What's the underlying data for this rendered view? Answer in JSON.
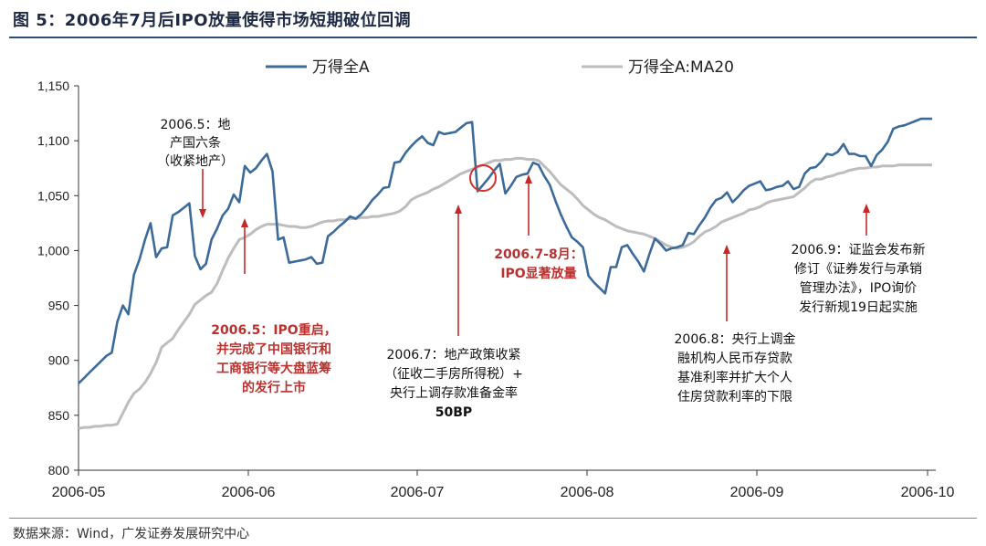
{
  "header": {
    "title": "图 5：2006年7月后IPO放量使得市场短期破位回调"
  },
  "footer": {
    "source": "数据来源：Wind，广发证券发展研究中心"
  },
  "chart_data": {
    "type": "line",
    "title": "2006年7月后IPO放量使得市场短期破位回调",
    "xlabel": "",
    "ylabel": "",
    "ylim": [
      800,
      1150
    ],
    "yticks": [
      800,
      850,
      900,
      950,
      1000,
      1050,
      1100,
      1150
    ],
    "ytick_labels": [
      "800",
      "850",
      "900",
      "950",
      "1,000",
      "1,050",
      "1,100",
      "1,150"
    ],
    "xticks": [
      "2006-05",
      "2006-06",
      "2006-07",
      "2006-08",
      "2006-09",
      "2006-10"
    ],
    "legend": "top-center",
    "series": [
      {
        "name": "万得全A",
        "color": "#3d6b99",
        "x": [
          0,
          1,
          2,
          3,
          4,
          5,
          6,
          7,
          8,
          9,
          10,
          11,
          12,
          13,
          14,
          15,
          16,
          17,
          18,
          19,
          20,
          21,
          22,
          23,
          24,
          25,
          26,
          27,
          28,
          29,
          30,
          31,
          32,
          33,
          34,
          35,
          36,
          37,
          38,
          39,
          40,
          41,
          42,
          43,
          44,
          45,
          46,
          47,
          48,
          49,
          50,
          51,
          52,
          53,
          54,
          55,
          56,
          57,
          58,
          59,
          60,
          61,
          62,
          63,
          64,
          65,
          66,
          67,
          68,
          69,
          70,
          71,
          72,
          73,
          74,
          75,
          76,
          77,
          78,
          79,
          80,
          81,
          82,
          83,
          84,
          85,
          86,
          87,
          88,
          89,
          90,
          91,
          92,
          93,
          94,
          95,
          96,
          97,
          98,
          99,
          100,
          101,
          102,
          103,
          104,
          105,
          106,
          107,
          108,
          109,
          110,
          111,
          112,
          113,
          114,
          115,
          116,
          117,
          118,
          119,
          120,
          121,
          122,
          123,
          124,
          125,
          126,
          127,
          128,
          129,
          130,
          131,
          132,
          133,
          134,
          135,
          136,
          137,
          138,
          139,
          140,
          141,
          142,
          143,
          144,
          145,
          146,
          147,
          148,
          149,
          150,
          151,
          152,
          153,
          154
        ],
        "values": [
          879,
          884,
          889,
          894,
          899,
          904,
          907,
          935,
          950,
          942,
          978,
          992,
          1010,
          1025,
          994,
          1002,
          1003,
          1032,
          1035,
          1039,
          1043,
          995,
          983,
          988,
          1010,
          1020,
          1032,
          1038,
          1051,
          1044,
          1077,
          1071,
          1075,
          1082,
          1088,
          1072,
          1010,
          1012,
          989,
          990,
          991,
          992,
          994,
          988,
          989,
          1013,
          1017,
          1022,
          1026,
          1031,
          1029,
          1033,
          1039,
          1046,
          1051,
          1057,
          1058,
          1080,
          1081,
          1089,
          1095,
          1100,
          1104,
          1098,
          1096,
          1108,
          1106,
          1107,
          1108,
          1112,
          1116,
          1117,
          1054,
          1060,
          1066,
          1073,
          1079,
          1052,
          1059,
          1067,
          1069,
          1070,
          1080,
          1078,
          1068,
          1060,
          1046,
          1033,
          1022,
          1012,
          1008,
          1003,
          977,
          971,
          966,
          961,
          985,
          985,
          1003,
          1005,
          997,
          990,
          981,
          997,
          1011,
          1006,
          1000,
          1002,
          1003,
          1005,
          1016,
          1015,
          1023,
          1030,
          1039,
          1046,
          1048,
          1053,
          1044,
          1049,
          1055,
          1059,
          1061,
          1063,
          1055,
          1056,
          1058,
          1059,
          1063,
          1056,
          1058,
          1070,
          1075,
          1076,
          1081,
          1088,
          1087,
          1090,
          1097,
          1088,
          1088,
          1086,
          1086,
          1077,
          1087,
          1092,
          1099,
          1111,
          1113,
          1114,
          1116,
          1118,
          1120,
          1120,
          1120
        ]
      },
      {
        "name": "万得全A:MA20",
        "color": "#bdbdbd",
        "x": [
          0,
          1,
          2,
          3,
          4,
          5,
          6,
          7,
          8,
          9,
          10,
          11,
          12,
          13,
          14,
          15,
          16,
          17,
          18,
          19,
          20,
          21,
          22,
          23,
          24,
          25,
          26,
          27,
          28,
          29,
          30,
          31,
          32,
          33,
          34,
          35,
          36,
          37,
          38,
          39,
          40,
          41,
          42,
          43,
          44,
          45,
          46,
          47,
          48,
          49,
          50,
          51,
          52,
          53,
          54,
          55,
          56,
          57,
          58,
          59,
          60,
          61,
          62,
          63,
          64,
          65,
          66,
          67,
          68,
          69,
          70,
          71,
          72,
          73,
          74,
          75,
          76,
          77,
          78,
          79,
          80,
          81,
          82,
          83,
          84,
          85,
          86,
          87,
          88,
          89,
          90,
          91,
          92,
          93,
          94,
          95,
          96,
          97,
          98,
          99,
          100,
          101,
          102,
          103,
          104,
          105,
          106,
          107,
          108,
          109,
          110,
          111,
          112,
          113,
          114,
          115,
          116,
          117,
          118,
          119,
          120,
          121,
          122,
          123,
          124,
          125,
          126,
          127,
          128,
          129,
          130,
          131,
          132,
          133,
          134,
          135,
          136,
          137,
          138,
          139,
          140,
          141,
          142,
          143,
          144,
          145,
          146,
          147,
          148,
          149,
          150,
          151,
          152,
          153,
          154
        ],
        "values": [
          838,
          839,
          839,
          840,
          840,
          841,
          841,
          842,
          852,
          862,
          870,
          874,
          880,
          888,
          898,
          912,
          916,
          920,
          928,
          935,
          942,
          951,
          955,
          959,
          962,
          970,
          982,
          993,
          1002,
          1010,
          1012,
          1015,
          1019,
          1022,
          1024,
          1024,
          1024,
          1023,
          1022,
          1022,
          1021,
          1021,
          1022,
          1024,
          1026,
          1027,
          1027,
          1028,
          1028,
          1029,
          1029,
          1030,
          1030,
          1031,
          1031,
          1032,
          1033,
          1034,
          1036,
          1040,
          1046,
          1049,
          1051,
          1053,
          1056,
          1058,
          1061,
          1064,
          1067,
          1070,
          1072,
          1074,
          1076,
          1078,
          1080,
          1082,
          1082,
          1083,
          1083,
          1084,
          1084,
          1083,
          1083,
          1082,
          1077,
          1072,
          1066,
          1060,
          1056,
          1052,
          1047,
          1041,
          1037,
          1033,
          1030,
          1028,
          1025,
          1022,
          1020,
          1018,
          1017,
          1016,
          1015,
          1013,
          1011,
          1008,
          1005,
          1003,
          1002,
          1003,
          1005,
          1008,
          1013,
          1017,
          1019,
          1022,
          1026,
          1028,
          1030,
          1032,
          1034,
          1037,
          1038,
          1040,
          1043,
          1045,
          1046,
          1047,
          1048,
          1049,
          1053,
          1057,
          1062,
          1065,
          1065,
          1067,
          1068,
          1070,
          1071,
          1073,
          1074,
          1075,
          1075,
          1076,
          1076,
          1077,
          1077,
          1077,
          1078,
          1078,
          1078,
          1078,
          1078,
          1078,
          1078
        ]
      }
    ],
    "annotations": [
      {
        "id": "a1",
        "lines": [
          "2006.5：地",
          "产国六条",
          "（收紧地产）"
        ],
        "color": "black",
        "x": 22
      },
      {
        "id": "a2",
        "lines": [
          "2006.5：IPO重启，",
          "并完成了中国银行和",
          "工商银行等大盘蓝筹",
          "的发行上市"
        ],
        "color": "red",
        "x": 30
      },
      {
        "id": "a3",
        "lines": [
          "2006.7：地产政策收紧",
          "（征收二手房所得税）+",
          "央行上调存款准备金率",
          "50BP"
        ],
        "color": "black",
        "x": 66
      },
      {
        "id": "a4",
        "lines": [
          "2006.7-8月：",
          "IPO显著放量"
        ],
        "color": "red",
        "x": 78
      },
      {
        "id": "a5",
        "lines": [
          "2006.8：央行上调金",
          "融机构人民币存贷款",
          "基准利率并扩大个人",
          "住房贷款利率的下限"
        ],
        "color": "black",
        "x": 115
      },
      {
        "id": "a6",
        "lines": [
          "2006.9：证监会发布新",
          "修订《证券发行与承销",
          "管理办法》，IPO询价",
          "发行新规19日起实施"
        ],
        "color": "black",
        "x": 143
      }
    ]
  }
}
